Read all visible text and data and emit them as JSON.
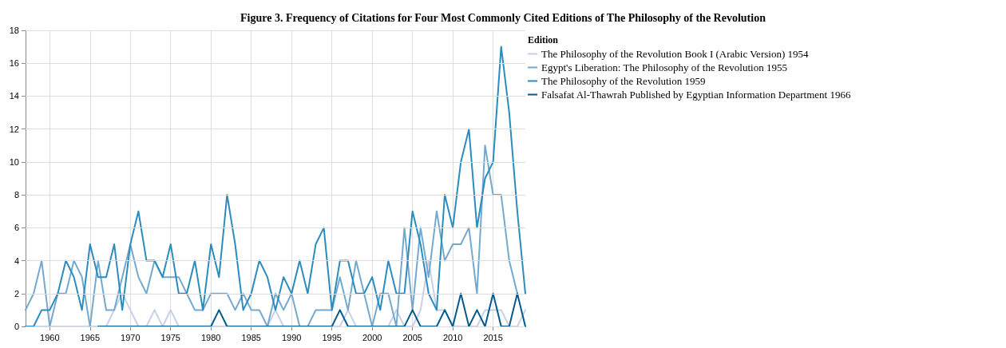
{
  "chart_data": {
    "type": "line",
    "title": "Figure 3. Frequency of Citations for Four Most Commonly Cited Editions of The Philosophy of the Revolution",
    "legend_title": "Edition",
    "legend": "top right",
    "grid": true,
    "marker": "none",
    "line_style": "solid",
    "x": [
      1957,
      1958,
      1959,
      1960,
      1961,
      1962,
      1963,
      1964,
      1965,
      1966,
      1967,
      1968,
      1969,
      1970,
      1971,
      1972,
      1973,
      1974,
      1975,
      1976,
      1977,
      1978,
      1979,
      1980,
      1981,
      1982,
      1983,
      1984,
      1985,
      1986,
      1987,
      1988,
      1989,
      1990,
      1991,
      1992,
      1993,
      1994,
      1995,
      1996,
      1997,
      1998,
      1999,
      2000,
      2001,
      2002,
      2003,
      2004,
      2005,
      2006,
      2007,
      2008,
      2009,
      2010,
      2011,
      2012,
      2013,
      2014,
      2015,
      2016,
      2017,
      2018,
      2019
    ],
    "xlim": [
      1957,
      2019
    ],
    "xticks": [
      1960,
      1965,
      1970,
      1975,
      1980,
      1985,
      1990,
      1995,
      2000,
      2005,
      2010,
      2015
    ],
    "ylim": [
      0,
      18
    ],
    "yticks": [
      0,
      2,
      4,
      6,
      8,
      10,
      12,
      14,
      16,
      18
    ],
    "series": [
      {
        "name": "The Philosophy of the Revolution Book I (Arabic Version) 1954",
        "color": "#c6d0e6",
        "values": [
          0,
          0,
          0,
          0,
          0,
          0,
          0,
          0,
          0,
          0,
          0,
          1,
          2,
          1,
          0,
          0,
          1,
          0,
          1,
          0,
          0,
          0,
          0,
          0,
          0,
          0,
          0,
          0,
          0,
          0,
          0,
          1,
          0,
          0,
          0,
          0,
          0,
          0,
          0,
          0,
          1,
          0,
          0,
          0,
          0,
          0,
          1,
          0,
          0,
          1,
          4,
          1,
          1,
          0,
          0,
          0,
          0,
          1,
          1,
          1,
          0,
          0,
          1
        ]
      },
      {
        "name": "Egypt's Liberation: The Philosophy of the Revolution 1955",
        "color": "#74a9cf",
        "values": [
          1,
          2,
          4,
          0,
          2,
          2,
          4,
          3,
          0,
          4,
          1,
          1,
          3,
          5,
          3,
          2,
          4,
          3,
          3,
          3,
          2,
          1,
          1,
          2,
          2,
          2,
          1,
          2,
          1,
          1,
          0,
          2,
          1,
          2,
          0,
          0,
          1,
          1,
          1,
          3,
          1,
          4,
          2,
          0,
          2,
          2,
          0,
          6,
          1,
          6,
          3,
          7,
          4,
          5,
          5,
          6,
          2,
          11,
          8,
          8,
          4,
          2,
          null
        ]
      },
      {
        "name": "The Philosophy of the Revolution 1959",
        "color": "#2b8cbe",
        "values": [
          0,
          0,
          1,
          1,
          2,
          4,
          3,
          1,
          5,
          3,
          3,
          5,
          1,
          5,
          7,
          4,
          4,
          3,
          5,
          2,
          2,
          4,
          1,
          5,
          3,
          8,
          5,
          1,
          2,
          4,
          3,
          1,
          3,
          2,
          4,
          2,
          5,
          6,
          1,
          4,
          4,
          2,
          2,
          3,
          1,
          4,
          2,
          2,
          7,
          5,
          2,
          1,
          8,
          6,
          10,
          12,
          6,
          9,
          10,
          17,
          13,
          7,
          2
        ]
      },
      {
        "name": "Falsafat Al-Thawrah Published by Egyptian Information Department 1966",
        "color": "#045a8d",
        "values": [
          null,
          null,
          null,
          null,
          null,
          null,
          null,
          null,
          null,
          0,
          0,
          0,
          0,
          0,
          0,
          0,
          0,
          0,
          0,
          0,
          0,
          0,
          0,
          0,
          1,
          0,
          0,
          0,
          0,
          0,
          0,
          0,
          0,
          0,
          0,
          0,
          0,
          0,
          0,
          1,
          0,
          0,
          0,
          0,
          0,
          0,
          0,
          0,
          1,
          0,
          0,
          0,
          1,
          0,
          2,
          0,
          1,
          0,
          2,
          0,
          0,
          2,
          0
        ]
      }
    ]
  }
}
